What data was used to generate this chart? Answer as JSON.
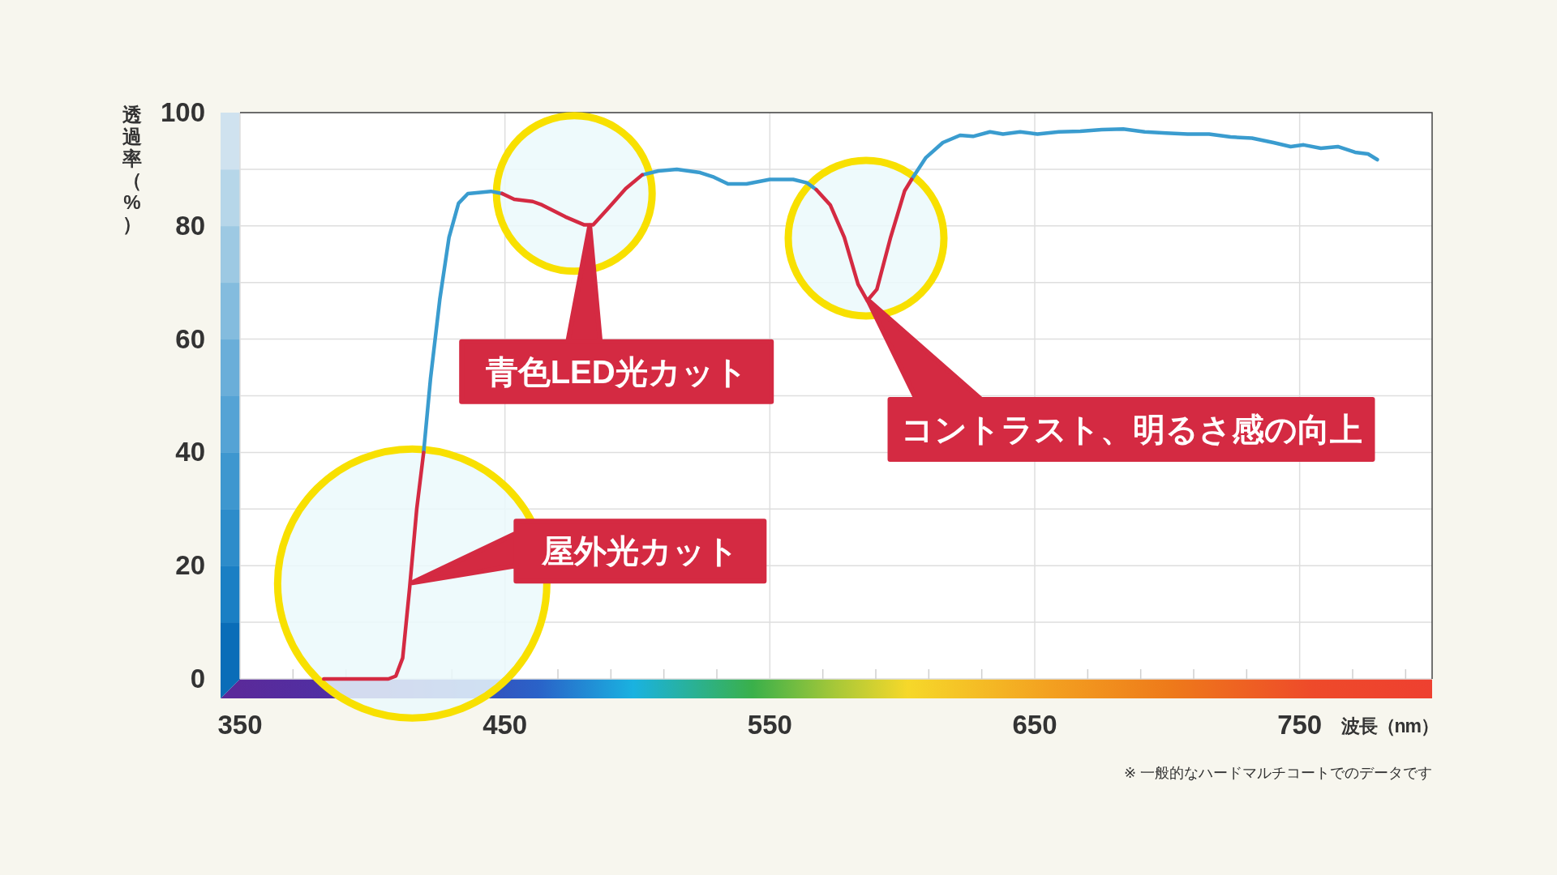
{
  "chart_data": {
    "type": "line",
    "xlabel": "波長（nm）",
    "ylabel": "透過率（%）",
    "xlim": [
      350,
      800
    ],
    "ylim": [
      0,
      100
    ],
    "xticks": [
      350,
      {
        "value": 370,
        "label": null
      },
      {
        "value": 390,
        "label": null
      },
      {
        "value": 410,
        "label": null
      },
      {
        "value": 430,
        "label": null
      },
      450,
      {
        "value": 470,
        "label": null
      },
      {
        "value": 490,
        "label": null
      },
      {
        "value": 510,
        "label": null
      },
      {
        "value": 530,
        "label": null
      },
      550,
      {
        "value": 570,
        "label": null
      },
      {
        "value": 590,
        "label": null
      },
      {
        "value": 610,
        "label": null
      },
      {
        "value": 630,
        "label": null
      },
      650,
      {
        "value": 670,
        "label": null
      },
      {
        "value": 690,
        "label": null
      },
      {
        "value": 710,
        "label": null
      },
      {
        "value": 730,
        "label": null
      },
      750,
      {
        "value": 770,
        "label": null
      },
      {
        "value": 790,
        "label": null
      }
    ],
    "yticks": [
      0,
      {
        "value": 10,
        "label": null
      },
      20,
      {
        "value": 30,
        "label": null
      },
      40,
      {
        "value": 50,
        "label": null
      },
      60,
      {
        "value": 70,
        "label": null
      },
      80,
      {
        "value": 90,
        "label": null
      },
      100
    ],
    "grid": true,
    "line_style": "solid",
    "series": [
      {
        "color": "#3a9ccf",
        "x": [
          419.3,
          421.9,
          425.4,
          428.9,
          432.5,
          436,
          444.7,
          449
        ],
        "values": [
          40,
          53,
          67,
          78,
          84,
          85.7,
          86.1,
          85.7
        ]
      },
      {
        "color": "#3a9ccf",
        "x": [
          501.8,
          507.9,
          514.9,
          523.7,
          528.9,
          534.2,
          541.2,
          550,
          558.8,
          564,
          567.5
        ],
        "values": [
          89,
          89.7,
          90,
          89.4,
          88.6,
          87.4,
          87.4,
          88.2,
          88.2,
          87.6,
          86.4
        ]
      },
      {
        "color": "#3a9ccf",
        "x": [
          603.5,
          608.8,
          615.3,
          621.8,
          626.7,
          633.1,
          638,
          644.5,
          651,
          659.1,
          667.2,
          675.3,
          683.4,
          691.5,
          699.6,
          707.7,
          715.8,
          723.9,
          732,
          740.1,
          746.6,
          751.5,
          758,
          764.4,
          770.9,
          775.8,
          779.3
        ],
        "values": [
          88.2,
          92,
          94.7,
          96,
          95.8,
          96.6,
          96.2,
          96.6,
          96.2,
          96.6,
          96.7,
          97,
          97.1,
          96.6,
          96.4,
          96.2,
          96.2,
          95.7,
          95.5,
          94.7,
          94,
          94.3,
          93.7,
          94,
          93,
          92.7,
          91.7
        ]
      },
      {
        "color": "#d42a42",
        "x": [
          381.6,
          406,
          408.8,
          411.4,
          414,
          416.7,
          419.3
        ],
        "values": [
          0,
          0,
          0.5,
          3.7,
          16,
          30,
          40
        ]
      },
      {
        "color": "#d42a42",
        "x": [
          449,
          453.5,
          460.5,
          464,
          472.8,
          479.8,
          483.3,
          488.6,
          495.6,
          501.8
        ],
        "values": [
          85.7,
          84.7,
          84.3,
          83.7,
          81.6,
          80.2,
          80.2,
          82.9,
          86.6,
          89
        ]
      },
      {
        "color": "#d42a42",
        "x": [
          567.5,
          572.8,
          578.1,
          583.3,
          586.8,
          590.4,
          595.6,
          600.9,
          603.5
        ],
        "values": [
          86.4,
          83.7,
          78,
          69.7,
          66.8,
          68.8,
          78,
          86.2,
          88.2
        ]
      }
    ],
    "annotations": [
      {
        "text": "青色LED光カット",
        "x": 482,
        "y": 80
      },
      "コントラスト、明るさ感の向上",
      {
        "text": "屋外光カット",
        "x": 415,
        "y": 17
      },
      "※ 一般的なハードマルチコートでのデータです"
    ]
  }
}
